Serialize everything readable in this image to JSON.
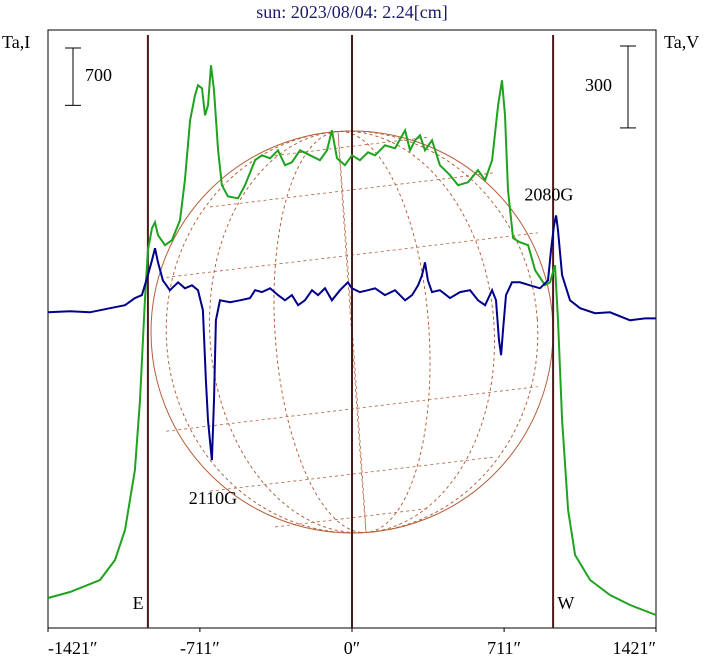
{
  "chart_data": {
    "type": "line",
    "title": "sun: 2023/08/04: 2.24[cm]",
    "y_label": "Ta,I",
    "y2_label": "Ta,V",
    "xlim": [
      -1421,
      1421
    ],
    "ylim": [
      0,
      7300
    ],
    "y2lim": [
      -1160,
      1030
    ],
    "xticks": [
      {
        "value": -1421,
        "label": "-1421″"
      },
      {
        "value": -711,
        "label": "-711″"
      },
      {
        "value": 0,
        "label": "0″"
      },
      {
        "value": 711,
        "label": "711″"
      },
      {
        "value": 1421,
        "label": "1421″"
      }
    ],
    "vlines": [
      -954,
      0,
      940
    ],
    "scale_bar_y": 700,
    "scale_bar_y2": 300,
    "annotations": [
      {
        "text": "2110G",
        "x": -650,
        "y": -690,
        "axis": "y2"
      },
      {
        "text": "2080G",
        "x": 920,
        "y": 420,
        "axis": "y2"
      },
      {
        "text": "E",
        "x": -1000,
        "y": 280
      },
      {
        "text": "W",
        "x": 1000,
        "y": 280
      }
    ],
    "series": [
      {
        "name": "I",
        "color": "#1fa31f",
        "x": [
          -1421,
          -1318,
          -1178,
          -1108,
          -1061,
          -1015,
          -991,
          -968,
          -954,
          -935,
          -921,
          -907,
          -874,
          -842,
          -804,
          -781,
          -757,
          -734,
          -720,
          -701,
          -687,
          -673,
          -659,
          -645,
          -626,
          -608,
          -580,
          -533,
          -500,
          -453,
          -421,
          -383,
          -346,
          -313,
          -281,
          -243,
          -196,
          -150,
          -117,
          -94,
          -70,
          -33,
          0,
          37,
          75,
          108,
          154,
          201,
          248,
          271,
          295,
          318,
          341,
          374,
          411,
          458,
          496,
          542,
          589,
          622,
          655,
          683,
          701,
          715,
          729,
          753,
          785,
          823,
          856,
          902,
          926,
          949,
          963,
          982,
          1010,
          1043,
          1113,
          1206,
          1300,
          1421
        ],
        "values": [
          366,
          439,
          586,
          830,
          1196,
          1928,
          2782,
          4002,
          4612,
          4880,
          4953,
          4795,
          4673,
          4734,
          4978,
          5466,
          6198,
          6503,
          6625,
          6588,
          6259,
          6381,
          6869,
          6564,
          5832,
          5405,
          5270,
          5246,
          5405,
          5710,
          5771,
          5734,
          5832,
          5649,
          5685,
          5832,
          5771,
          5710,
          5832,
          6076,
          5734,
          5649,
          5771,
          5710,
          5807,
          5771,
          5893,
          5856,
          6076,
          5832,
          5954,
          6015,
          5832,
          5954,
          5649,
          5527,
          5405,
          5441,
          5588,
          5466,
          5710,
          6381,
          6686,
          6259,
          5344,
          4758,
          4709,
          4673,
          4368,
          4185,
          4221,
          4429,
          3758,
          2538,
          1440,
          891,
          586,
          403,
          281,
          159
        ]
      },
      {
        "name": "V",
        "color": "#00008b",
        "axis": "y2",
        "x": [
          -1421,
          -1318,
          -1225,
          -1131,
          -1061,
          -1015,
          -982,
          -954,
          -935,
          -921,
          -907,
          -884,
          -851,
          -813,
          -781,
          -748,
          -720,
          -697,
          -683,
          -673,
          -664,
          -655,
          -645,
          -636,
          -617,
          -570,
          -524,
          -477,
          -453,
          -421,
          -383,
          -346,
          -313,
          -281,
          -252,
          -220,
          -187,
          -159,
          -126,
          -94,
          -56,
          -19,
          0,
          37,
          75,
          108,
          154,
          201,
          248,
          281,
          309,
          327,
          341,
          355,
          374,
          411,
          458,
          505,
          552,
          589,
          622,
          655,
          673,
          687,
          697,
          706,
          720,
          748,
          785,
          832,
          879,
          916,
          930,
          944,
          954,
          963,
          982,
          1019,
          1066,
          1136,
          1206,
          1300,
          1370,
          1421
        ],
        "values": [
          -4,
          0,
          -4,
          11,
          22,
          48,
          59,
          132,
          187,
          231,
          179,
          113,
          77,
          106,
          84,
          95,
          77,
          4,
          -253,
          -399,
          -472,
          -545,
          -326,
          -33,
          40,
          33,
          40,
          48,
          77,
          70,
          84,
          59,
          40,
          59,
          22,
          40,
          77,
          59,
          84,
          40,
          77,
          106,
          84,
          70,
          77,
          84,
          59,
          77,
          40,
          59,
          95,
          132,
          179,
          113,
          70,
          77,
          48,
          70,
          77,
          40,
          22,
          77,
          40,
          -106,
          -161,
          -70,
          59,
          106,
          106,
          95,
          84,
          113,
          223,
          315,
          351,
          296,
          132,
          40,
          11,
          -7,
          -4,
          -33,
          -26,
          -26
        ]
      }
    ]
  }
}
